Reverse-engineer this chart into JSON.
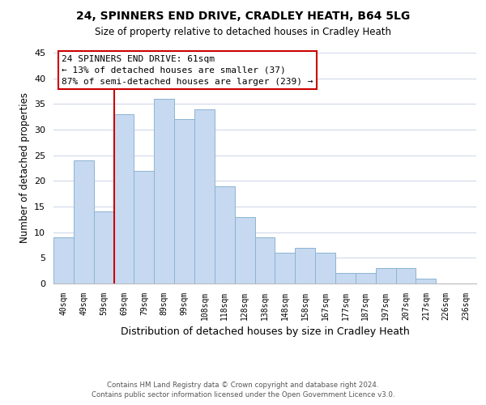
{
  "title": "24, SPINNERS END DRIVE, CRADLEY HEATH, B64 5LG",
  "subtitle": "Size of property relative to detached houses in Cradley Heath",
  "xlabel": "Distribution of detached houses by size in Cradley Heath",
  "ylabel": "Number of detached properties",
  "bar_labels": [
    "40sqm",
    "49sqm",
    "59sqm",
    "69sqm",
    "79sqm",
    "89sqm",
    "99sqm",
    "108sqm",
    "118sqm",
    "128sqm",
    "138sqm",
    "148sqm",
    "158sqm",
    "167sqm",
    "177sqm",
    "187sqm",
    "197sqm",
    "207sqm",
    "217sqm",
    "226sqm",
    "236sqm"
  ],
  "bar_values": [
    9,
    24,
    14,
    33,
    22,
    36,
    32,
    34,
    19,
    13,
    9,
    6,
    7,
    6,
    2,
    2,
    3,
    3,
    1,
    0,
    0
  ],
  "bar_color": "#c6d9f0",
  "bar_edgecolor": "#8cb4d2",
  "annotation_title": "24 SPINNERS END DRIVE: 61sqm",
  "annotation_line1": "← 13% of detached houses are smaller (37)",
  "annotation_line2": "87% of semi-detached houses are larger (239) →",
  "annotation_box_edgecolor": "#cc0000",
  "property_line_color": "#cc0000",
  "ylim": [
    0,
    45
  ],
  "yticks": [
    0,
    5,
    10,
    15,
    20,
    25,
    30,
    35,
    40,
    45
  ],
  "footer_line1": "Contains HM Land Registry data © Crown copyright and database right 2024.",
  "footer_line2": "Contains public sector information licensed under the Open Government Licence v3.0.",
  "background_color": "#ffffff",
  "grid_color": "#d0d8e8",
  "property_line_bar_index": 2
}
